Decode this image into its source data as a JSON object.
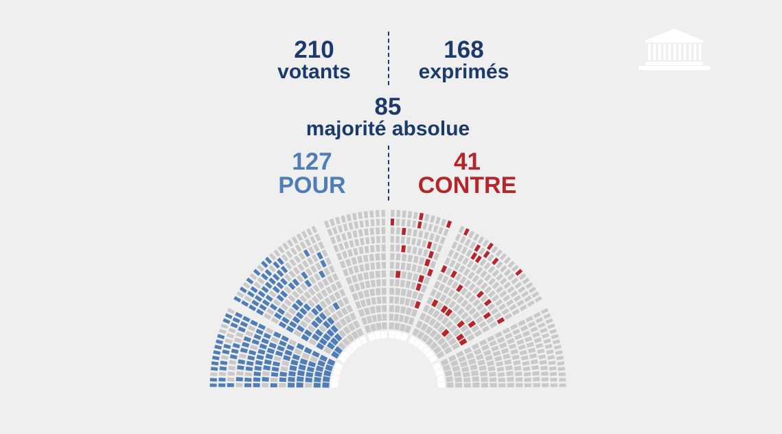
{
  "header": {
    "votants": {
      "value": "210",
      "label": "votants"
    },
    "exprimes": {
      "value": "168",
      "label": "exprimés"
    },
    "majorite": {
      "value": "85",
      "label": "majorité absolue"
    },
    "pour": {
      "value": "127",
      "label": "POUR"
    },
    "contre": {
      "value": "41",
      "label": "CONTRE"
    }
  },
  "colors": {
    "navy": "#1b3a6b",
    "pour": "#4e7db8",
    "contre": "#b5262a",
    "absent": "#c9c9c9",
    "empty": "#ffffff",
    "background": "#efefef"
  },
  "logo": {
    "icon": "assemblee-nationale-building-icon"
  },
  "hemicycle": {
    "icon": "hemicycle-seating-chart",
    "pour_count": 127,
    "contre_count": 41
  }
}
